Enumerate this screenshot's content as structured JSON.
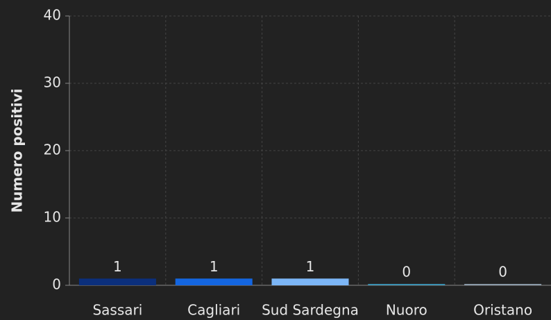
{
  "chart_data": {
    "type": "bar",
    "y_axis_label": "Numero positivi",
    "categories": [
      "Sassari",
      "Cagliari",
      "Sud Sardegna",
      "Nuoro",
      "Oristano"
    ],
    "values": [
      1,
      1,
      1,
      0,
      0
    ],
    "colors": [
      "#0b2f7c",
      "#1466e0",
      "#7cb6f6",
      "#3b90b2",
      "#8b9aa8"
    ],
    "ylim": [
      0,
      40
    ],
    "yticks": [
      0,
      10,
      20,
      30,
      40
    ],
    "grid": true
  }
}
